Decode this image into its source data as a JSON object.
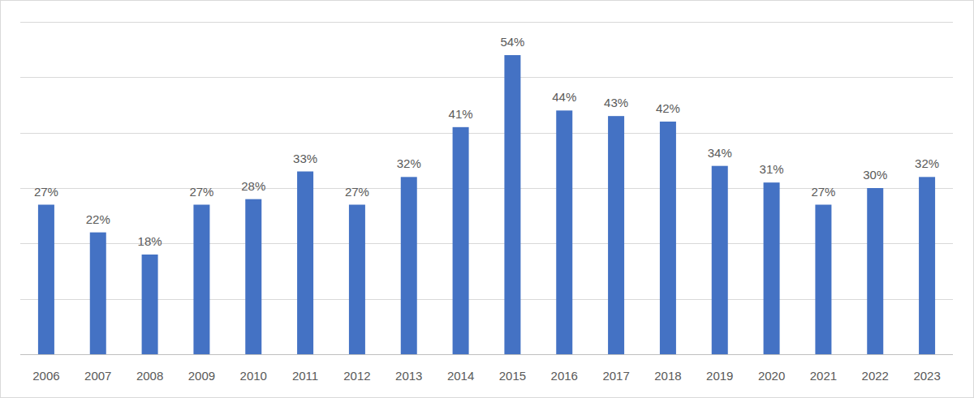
{
  "chart_data": {
    "type": "bar",
    "categories": [
      "2006",
      "2007",
      "2008",
      "2009",
      "2010",
      "2011",
      "2012",
      "2013",
      "2014",
      "2015",
      "2016",
      "2017",
      "2018",
      "2019",
      "2020",
      "2021",
      "2022",
      "2023"
    ],
    "values": [
      27,
      22,
      18,
      27,
      28,
      33,
      27,
      32,
      41,
      54,
      44,
      43,
      42,
      34,
      31,
      27,
      30,
      32
    ],
    "value_labels": [
      "27%",
      "22%",
      "18%",
      "27%",
      "28%",
      "33%",
      "27%",
      "32%",
      "41%",
      "54%",
      "44%",
      "43%",
      "42%",
      "34%",
      "31%",
      "27%",
      "30%",
      "32%"
    ],
    "color": "#4472c4",
    "ylim": [
      0,
      60
    ],
    "yticks": [
      0,
      10,
      20,
      30,
      40,
      50,
      60
    ],
    "grid": true,
    "data_labels": true,
    "tick_labels": "x"
  }
}
